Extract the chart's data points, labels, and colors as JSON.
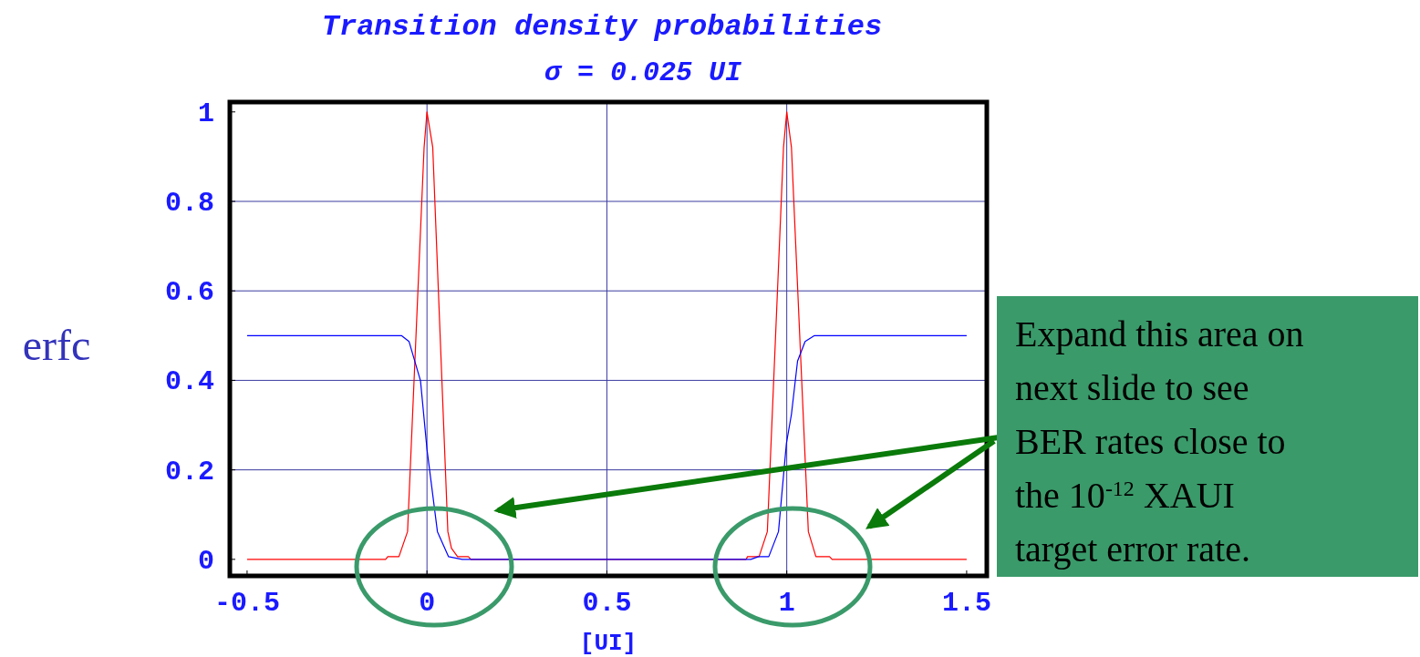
{
  "chart_data": {
    "type": "line",
    "title": "Transition density probabilities",
    "subtitle": "σ = 0.025 UI",
    "xlabel": "[UI]",
    "ylabel": "erfc",
    "xlim": [
      -0.548,
      1.556
    ],
    "ylim": [
      -0.037,
      1.022
    ],
    "xticks": [
      -0.5,
      0,
      0.5,
      1,
      1.5
    ],
    "yticks": [
      0,
      0.2,
      0.4,
      0.6,
      0.8,
      1
    ],
    "grid": true,
    "marker": "none",
    "line_style": "solid",
    "series": [
      {
        "color": "#ff0000",
        "x": [
          -0.5,
          -0.115,
          -0.109,
          -0.078,
          -0.054,
          -0.008,
          0,
          0.016,
          0.058,
          0.068,
          0.085,
          0.115,
          0.122,
          0.887,
          0.891,
          0.923,
          0.946,
          0.991,
          1,
          1.013,
          1.06,
          1.081,
          1.119,
          1.126,
          1.5
        ],
        "values": [
          0,
          0,
          0.006,
          0.006,
          0.062,
          0.921,
          1,
          0.921,
          0.062,
          0.025,
          0.006,
          0.006,
          0,
          0,
          0.006,
          0.006,
          0.062,
          0.921,
          1,
          0.921,
          0.062,
          0.006,
          0.006,
          0,
          0
        ]
      },
      {
        "color": "#0000ff",
        "x": [
          -0.5,
          -0.071,
          -0.05,
          -0.018,
          0,
          0.029,
          0.06,
          0.098,
          0.9,
          0.921,
          0.95,
          0.977,
          0.999,
          1.013,
          1.03,
          1.051,
          1.077,
          1.5
        ],
        "values": [
          0.5,
          0.5,
          0.487,
          0.399,
          0.246,
          0.062,
          0.006,
          0,
          0,
          0.006,
          0.006,
          0.062,
          0.259,
          0.324,
          0.443,
          0.487,
          0.5,
          0.5
        ]
      }
    ],
    "annotations": [
      "Expand this area on next slide to see BER rates close to the 10$^{-12}$ XAUI target error rate."
    ]
  }
}
